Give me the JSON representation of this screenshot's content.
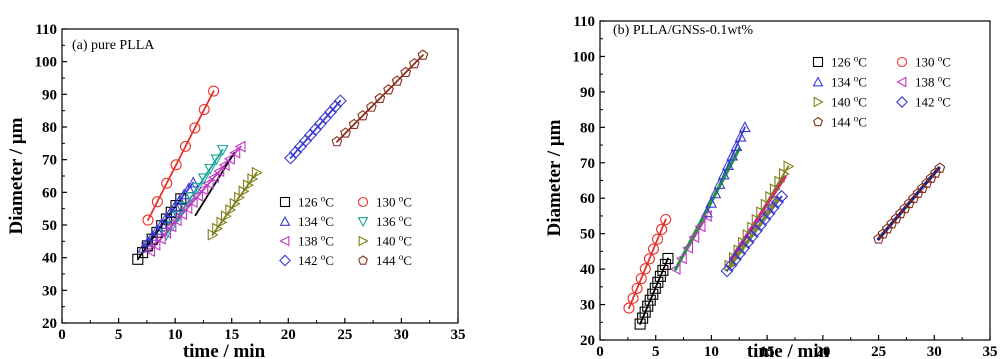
{
  "chart_data": [
    {
      "type": "scatter",
      "title": "(a) pure PLLA",
      "xlabel": "time / min",
      "ylabel": "Diameter / μm",
      "xlim": [
        0,
        35
      ],
      "ylim": [
        20,
        110
      ],
      "xticks": [
        0,
        5,
        10,
        15,
        20,
        25,
        30,
        35
      ],
      "yticks": [
        20,
        30,
        40,
        50,
        60,
        70,
        80,
        90,
        100,
        110
      ],
      "legend_position": "lower-right",
      "series": [
        {
          "name": "126 °C",
          "temp": "126",
          "marker": "square",
          "color": "#000000",
          "line_color": "#000000",
          "x_start": 6.7,
          "x_end": 10.5,
          "y_start": 39.5,
          "y_end": 58,
          "points": 10
        },
        {
          "name": "130 °C",
          "temp": "130",
          "marker": "circle",
          "color": "#e8322d",
          "line_color": "#e8322d",
          "x_start": 7.6,
          "x_end": 13.4,
          "y_start": 51.5,
          "y_end": 91,
          "points": 8
        },
        {
          "name": "134 °C",
          "temp": "134",
          "marker": "triangle-up",
          "color": "#3b3bd0",
          "line_color": "#3b3bd0",
          "x_start": 7.2,
          "x_end": 11.6,
          "y_start": 43,
          "y_end": 63,
          "points": 12
        },
        {
          "name": "136 °C",
          "temp": "136",
          "marker": "triangle-down",
          "color": "#1aa59a",
          "line_color": "#1aa59a",
          "x_start": 9.2,
          "x_end": 14.2,
          "y_start": 47,
          "y_end": 73,
          "points": 10
        },
        {
          "name": "138 °C",
          "temp": "138",
          "marker": "triangle-left",
          "color": "#c236c2",
          "line_color": "#c236c2",
          "x_start": 7.8,
          "x_end": 15.8,
          "y_start": 42,
          "y_end": 74,
          "points": 18
        },
        {
          "name": "140 °C",
          "temp": "140",
          "marker": "triangle-right",
          "color": "#7e7e1a",
          "line_color": "#7e7e1a",
          "x_start": 13.3,
          "x_end": 17.2,
          "y_start": 47,
          "y_end": 66,
          "points": 11
        },
        {
          "name": "142 °C",
          "temp": "142",
          "marker": "diamond",
          "color": "#3b3bd0",
          "line_color": "#3b3bd0",
          "x_start": 20.2,
          "x_end": 24.6,
          "y_start": 70.5,
          "y_end": 88,
          "points": 11
        },
        {
          "name": "144 °C",
          "temp": "144",
          "marker": "pentagon",
          "color": "#8a2e1e",
          "line_color": "#8a2e1e",
          "x_start": 24.3,
          "x_end": 31.9,
          "y_start": 75.5,
          "y_end": 102,
          "points": 11
        },
        {
          "name": "",
          "temp": "",
          "marker": "none",
          "color": "#000000",
          "line_color": "#000000",
          "x_start": 11.8,
          "x_end": 15.2,
          "y_start": 53,
          "y_end": 72,
          "points": 0
        }
      ]
    },
    {
      "type": "scatter",
      "title": "(b) PLLA/GNSs-0.1wt%",
      "xlabel": "time / min",
      "ylabel": "Diameter / μm",
      "xlim": [
        0,
        35
      ],
      "ylim": [
        20,
        110
      ],
      "xticks": [
        0,
        5,
        10,
        15,
        20,
        25,
        30,
        35
      ],
      "yticks": [
        20,
        30,
        40,
        50,
        60,
        70,
        80,
        90,
        100,
        110
      ],
      "legend_position": "top-right",
      "series": [
        {
          "name": "126 °C",
          "temp": "126",
          "marker": "square",
          "color": "#000000",
          "line_color": "#000000",
          "x_start": 3.6,
          "x_end": 6.1,
          "y_start": 24.5,
          "y_end": 43,
          "points": 12
        },
        {
          "name": "130 °C",
          "temp": "130",
          "marker": "circle",
          "color": "#e8322d",
          "line_color": "#e8322d",
          "x_start": 2.6,
          "x_end": 5.9,
          "y_start": 29,
          "y_end": 54,
          "points": 10
        },
        {
          "name": "134 °C",
          "temp": "134",
          "marker": "triangle-up",
          "color": "#3b3bd0",
          "line_color": "#3b3bd0",
          "x_start": 9.6,
          "x_end": 13.0,
          "y_start": 56,
          "y_end": 80,
          "points": 10
        },
        {
          "name": "138 °C",
          "temp": "138",
          "marker": "triangle-left",
          "color": "#c236c2",
          "line_color": "#c236c2",
          "x_start": 6.8,
          "x_end": 9.6,
          "y_start": 40,
          "y_end": 55,
          "points": 6
        },
        {
          "name": "140 °C",
          "temp": "140",
          "marker": "triangle-right",
          "color": "#7e7e1a",
          "line_color": "#7e7e1a",
          "x_start": 11.6,
          "x_end": 16.9,
          "y_start": 41,
          "y_end": 69,
          "points": 14
        },
        {
          "name": "142 °C",
          "temp": "142",
          "marker": "diamond",
          "color": "#3b3bd0",
          "line_color": "#3b3bd0",
          "x_start": 11.4,
          "x_end": 16.3,
          "y_start": 39.5,
          "y_end": 60.5,
          "points": 14
        },
        {
          "name": "144 °C",
          "temp": "144",
          "marker": "pentagon",
          "color": "#8a2e1e",
          "line_color": "#8a2e1e",
          "x_start": 25.0,
          "x_end": 30.5,
          "y_start": 48.5,
          "y_end": 68.5,
          "points": 15
        },
        {
          "name": "",
          "temp": "",
          "marker": "none",
          "color": "#000000",
          "line_color": "#1f9a3a",
          "x_start": 6.8,
          "x_end": 12.5,
          "y_start": 40,
          "y_end": 74,
          "points": 0
        },
        {
          "name": "",
          "temp": "",
          "marker": "none",
          "color": "#000000",
          "line_color": "#e0168a",
          "x_start": 11.8,
          "x_end": 16.6,
          "y_start": 43,
          "y_end": 66,
          "points": 0
        },
        {
          "name": "",
          "temp": "",
          "marker": "none",
          "color": "#000000",
          "line_color": "#8a8a1a",
          "x_start": 11.6,
          "x_end": 16.0,
          "y_start": 40.5,
          "y_end": 60,
          "points": 0
        },
        {
          "name": "",
          "temp": "",
          "marker": "none",
          "color": "#000000",
          "line_color": "#1a237e",
          "x_start": 25.0,
          "x_end": 30.4,
          "y_start": 48.5,
          "y_end": 68.5,
          "points": 0
        }
      ]
    }
  ]
}
